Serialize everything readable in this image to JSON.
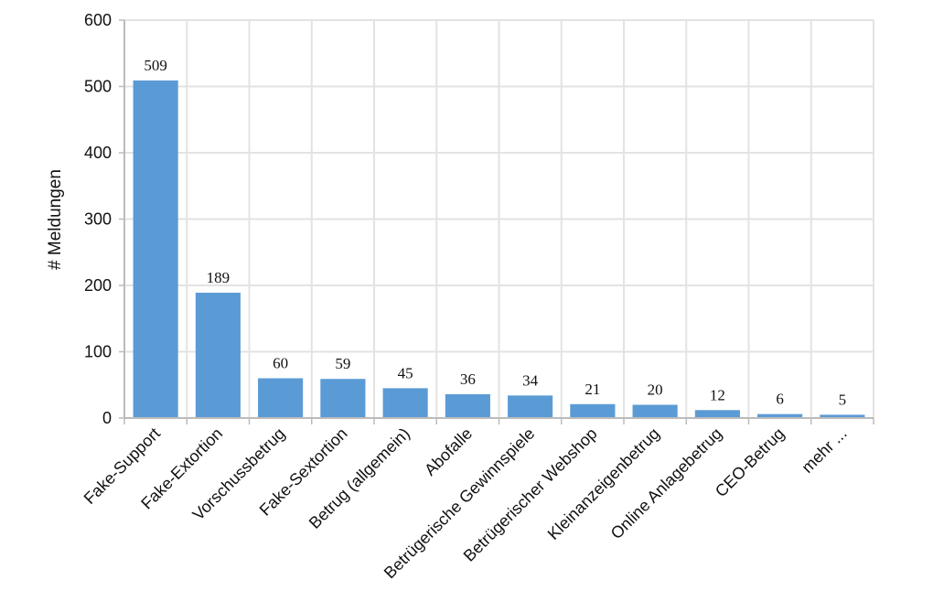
{
  "chart_data": {
    "type": "bar",
    "title": "",
    "xlabel": "",
    "ylabel": "# Meldungen",
    "ylim": [
      0,
      600
    ],
    "yticks": [
      0,
      100,
      200,
      300,
      400,
      500,
      600
    ],
    "grid": true,
    "bar_color": "#5b9bd5",
    "categories": [
      "Fake-Support",
      "Fake-Extortion",
      "Vorschussbetrug",
      "Fake-Sextortion",
      "Betrug (allgemein)",
      "Abofalle",
      "Betrügerische Gewinnspiele",
      "Betrügerischer Webshop",
      "Kleinanzeigenbetrug",
      "Online Anlagebetrug",
      "CEO-Betrug",
      "mehr ..."
    ],
    "values": [
      509,
      189,
      60,
      59,
      45,
      36,
      34,
      21,
      20,
      12,
      6,
      5
    ]
  }
}
